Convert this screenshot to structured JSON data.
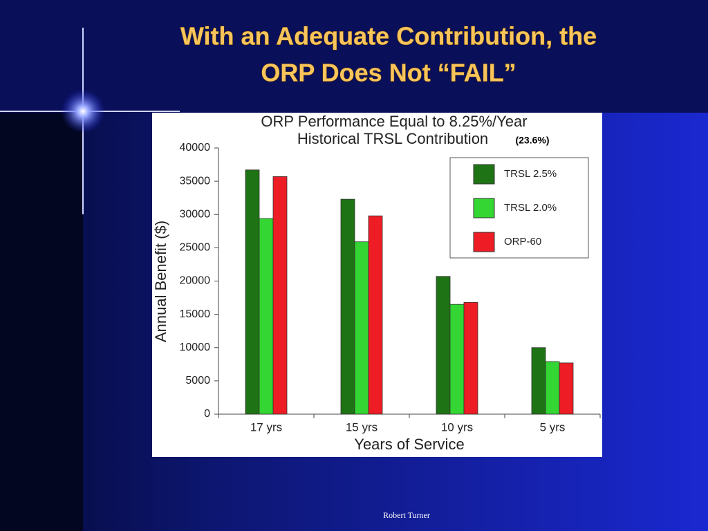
{
  "slide": {
    "title": [
      "With an Adequate Contribution, the",
      "ORP Does Not “FAIL”"
    ],
    "footer": "Robert Turner"
  },
  "chart_data": {
    "type": "bar",
    "title": [
      "ORP Performance Equal to 8.25%/Year",
      "Historical TRSL Contribution"
    ],
    "annotation": "(23.6%)",
    "x_label": "Years of Service",
    "y_label": "Annual Benefit ($)",
    "categories": [
      "17 yrs",
      "15 yrs",
      "10 yrs",
      "5 yrs"
    ],
    "series": [
      {
        "name": "TRSL 2.5%",
        "color": "#1e7314",
        "values": [
          36700,
          32300,
          20700,
          10000
        ]
      },
      {
        "name": "TRSL 2.0%",
        "color": "#33d633",
        "values": [
          29400,
          25900,
          16500,
          7900
        ]
      },
      {
        "name": "ORP-60",
        "color": "#ee1c24",
        "values": [
          35700,
          29800,
          16800,
          7700
        ]
      }
    ],
    "ylim": [
      0,
      40000
    ],
    "yticks": [
      0,
      5000,
      10000,
      15000,
      20000,
      25000,
      30000,
      35000,
      40000
    ],
    "legend": "upper right"
  }
}
